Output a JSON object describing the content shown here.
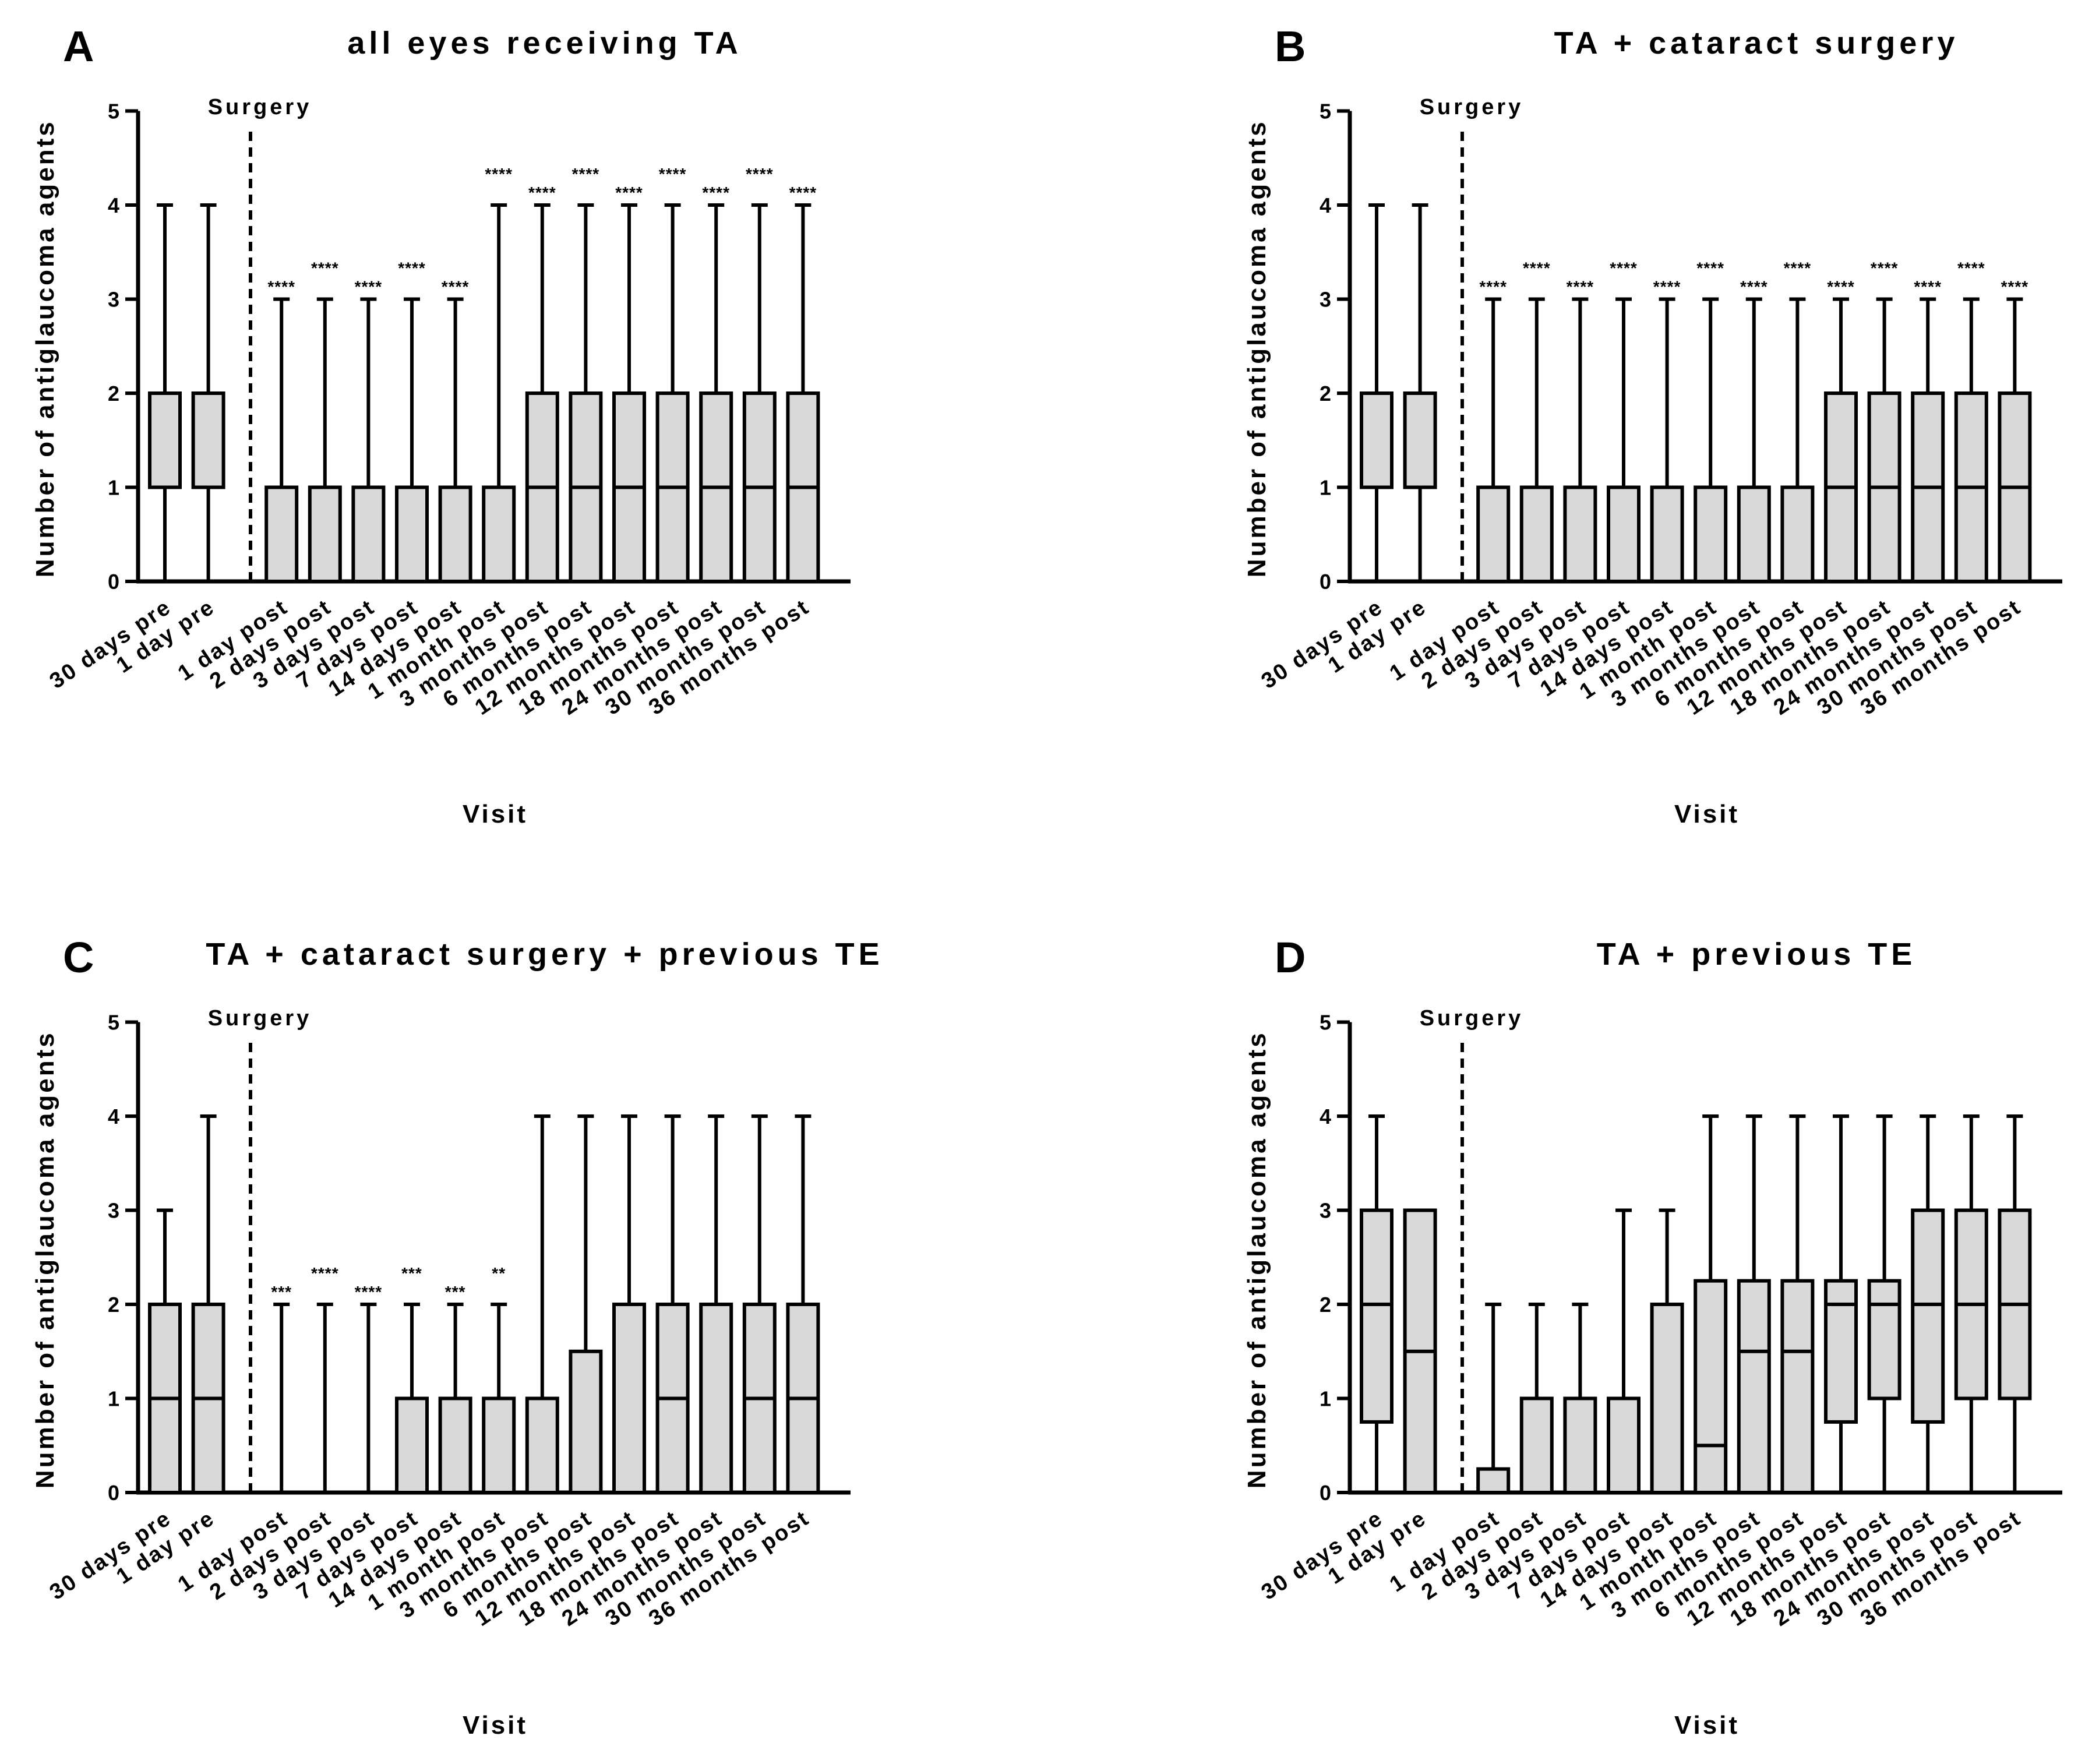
{
  "colors": {
    "box_fill": "#d9d9d9",
    "line": "#000000",
    "background": "#ffffff"
  },
  "chart_data": [
    {
      "type": "box",
      "panel": "A",
      "title": "all eyes receiving TA",
      "xlabel": "Visit",
      "ylabel": "Number of antiglaucoma agents",
      "ylim": [
        0,
        5
      ],
      "yticks": [
        0,
        1,
        2,
        3,
        4,
        5
      ],
      "marker_label": "Surgery",
      "categories": [
        "30 days pre",
        "1 day pre",
        "1 day post",
        "2 days post",
        "3 days post",
        "7 days post",
        "14 days post",
        "1 month post",
        "3 months post",
        "6 months post",
        "12 months post",
        "18 months post",
        "24 months post",
        "30 months post",
        "36 months post"
      ],
      "boxes": [
        {
          "min": 0,
          "q1": 1,
          "median": 1,
          "q3": 2,
          "max": 4,
          "sig": ""
        },
        {
          "min": 0,
          "q1": 1,
          "median": 1,
          "q3": 2,
          "max": 4,
          "sig": ""
        },
        {
          "min": 0,
          "q1": 0,
          "median": 0,
          "q3": 1,
          "max": 3,
          "sig": "****"
        },
        {
          "min": 0,
          "q1": 0,
          "median": 0,
          "q3": 1,
          "max": 3,
          "sig": "****"
        },
        {
          "min": 0,
          "q1": 0,
          "median": 0,
          "q3": 1,
          "max": 3,
          "sig": "****"
        },
        {
          "min": 0,
          "q1": 0,
          "median": 0,
          "q3": 1,
          "max": 3,
          "sig": "****"
        },
        {
          "min": 0,
          "q1": 0,
          "median": 0,
          "q3": 1,
          "max": 3,
          "sig": "****"
        },
        {
          "min": 0,
          "q1": 0,
          "median": 0,
          "q3": 1,
          "max": 4,
          "sig": "****"
        },
        {
          "min": 0,
          "q1": 0,
          "median": 1,
          "q3": 2,
          "max": 4,
          "sig": "****"
        },
        {
          "min": 0,
          "q1": 0,
          "median": 1,
          "q3": 2,
          "max": 4,
          "sig": "****"
        },
        {
          "min": 0,
          "q1": 0,
          "median": 1,
          "q3": 2,
          "max": 4,
          "sig": "****"
        },
        {
          "min": 0,
          "q1": 0,
          "median": 1,
          "q3": 2,
          "max": 4,
          "sig": "****"
        },
        {
          "min": 0,
          "q1": 0,
          "median": 1,
          "q3": 2,
          "max": 4,
          "sig": "****"
        },
        {
          "min": 0,
          "q1": 0,
          "median": 1,
          "q3": 2,
          "max": 4,
          "sig": "****"
        },
        {
          "min": 0,
          "q1": 0,
          "median": 1,
          "q3": 2,
          "max": 4,
          "sig": "****"
        }
      ]
    },
    {
      "type": "box",
      "panel": "B",
      "title": "TA + cataract surgery",
      "xlabel": "Visit",
      "ylabel": "Number of antiglaucoma agents",
      "ylim": [
        0,
        5
      ],
      "yticks": [
        0,
        1,
        2,
        3,
        4,
        5
      ],
      "marker_label": "Surgery",
      "categories": [
        "30 days pre",
        "1 day pre",
        "1 day post",
        "2 days post",
        "3 days post",
        "7 days post",
        "14 days post",
        "1 month post",
        "3 months post",
        "6 months post",
        "12 months post",
        "18 months post",
        "24 months post",
        "30 months post",
        "36 months post"
      ],
      "boxes": [
        {
          "min": 0,
          "q1": 1,
          "median": 1,
          "q3": 2,
          "max": 4,
          "sig": ""
        },
        {
          "min": 0,
          "q1": 1,
          "median": 1,
          "q3": 2,
          "max": 4,
          "sig": ""
        },
        {
          "min": 0,
          "q1": 0,
          "median": 0,
          "q3": 1,
          "max": 3,
          "sig": "****"
        },
        {
          "min": 0,
          "q1": 0,
          "median": 0,
          "q3": 1,
          "max": 3,
          "sig": "****"
        },
        {
          "min": 0,
          "q1": 0,
          "median": 0,
          "q3": 1,
          "max": 3,
          "sig": "****"
        },
        {
          "min": 0,
          "q1": 0,
          "median": 0,
          "q3": 1,
          "max": 3,
          "sig": "****"
        },
        {
          "min": 0,
          "q1": 0,
          "median": 0,
          "q3": 1,
          "max": 3,
          "sig": "****"
        },
        {
          "min": 0,
          "q1": 0,
          "median": 0,
          "q3": 1,
          "max": 3,
          "sig": "****"
        },
        {
          "min": 0,
          "q1": 0,
          "median": 0,
          "q3": 1,
          "max": 3,
          "sig": "****"
        },
        {
          "min": 0,
          "q1": 0,
          "median": 0,
          "q3": 1,
          "max": 3,
          "sig": "****"
        },
        {
          "min": 0,
          "q1": 0,
          "median": 1,
          "q3": 2,
          "max": 3,
          "sig": "****"
        },
        {
          "min": 0,
          "q1": 0,
          "median": 1,
          "q3": 2,
          "max": 3,
          "sig": "****"
        },
        {
          "min": 0,
          "q1": 0,
          "median": 1,
          "q3": 2,
          "max": 3,
          "sig": "****"
        },
        {
          "min": 0,
          "q1": 0,
          "median": 1,
          "q3": 2,
          "max": 3,
          "sig": "****"
        },
        {
          "min": 0,
          "q1": 0,
          "median": 1,
          "q3": 2,
          "max": 3,
          "sig": "****"
        }
      ]
    },
    {
      "type": "box",
      "panel": "C",
      "title": "TA + cataract surgery + previous TE",
      "xlabel": "Visit",
      "ylabel": "Number of antiglaucoma agents",
      "ylim": [
        0,
        5
      ],
      "yticks": [
        0,
        1,
        2,
        3,
        4,
        5
      ],
      "marker_label": "Surgery",
      "categories": [
        "30 days pre",
        "1 day pre",
        "1 day post",
        "2 days post",
        "3 days post",
        "7 days post",
        "14 days post",
        "1 month post",
        "3 months post",
        "6 months post",
        "12 months post",
        "18 months post",
        "24 months post",
        "30 months post",
        "36 months post"
      ],
      "boxes": [
        {
          "min": 0,
          "q1": 0,
          "median": 1,
          "q3": 2,
          "max": 3,
          "sig": ""
        },
        {
          "min": 0,
          "q1": 0,
          "median": 1,
          "q3": 2,
          "max": 4,
          "sig": ""
        },
        {
          "min": 0,
          "q1": 0,
          "median": 0,
          "q3": 0,
          "max": 2,
          "sig": "***"
        },
        {
          "min": 0,
          "q1": 0,
          "median": 0,
          "q3": 0,
          "max": 2,
          "sig": "****"
        },
        {
          "min": 0,
          "q1": 0,
          "median": 0,
          "q3": 0,
          "max": 2,
          "sig": "****"
        },
        {
          "min": 0,
          "q1": 0,
          "median": 0,
          "q3": 1,
          "max": 2,
          "sig": "***"
        },
        {
          "min": 0,
          "q1": 0,
          "median": 0,
          "q3": 1,
          "max": 2,
          "sig": "***"
        },
        {
          "min": 0,
          "q1": 0,
          "median": 0,
          "q3": 1,
          "max": 2,
          "sig": "**"
        },
        {
          "min": 0,
          "q1": 0,
          "median": 0,
          "q3": 1,
          "max": 4,
          "sig": ""
        },
        {
          "min": 0,
          "q1": 0,
          "median": 0,
          "q3": 1.5,
          "max": 4,
          "sig": ""
        },
        {
          "min": 0,
          "q1": 0,
          "median": 0,
          "q3": 2,
          "max": 4,
          "sig": ""
        },
        {
          "min": 0,
          "q1": 0,
          "median": 1,
          "q3": 2,
          "max": 4,
          "sig": ""
        },
        {
          "min": 0,
          "q1": 0,
          "median": 0,
          "q3": 2,
          "max": 4,
          "sig": ""
        },
        {
          "min": 0,
          "q1": 0,
          "median": 1,
          "q3": 2,
          "max": 4,
          "sig": ""
        },
        {
          "min": 0,
          "q1": 0,
          "median": 1,
          "q3": 2,
          "max": 4,
          "sig": ""
        }
      ]
    },
    {
      "type": "box",
      "panel": "D",
      "title": "TA + previous TE",
      "xlabel": "Visit",
      "ylabel": "Number of antiglaucoma agents",
      "ylim": [
        0,
        5
      ],
      "yticks": [
        0,
        1,
        2,
        3,
        4,
        5
      ],
      "marker_label": "Surgery",
      "categories": [
        "30 days pre",
        "1 day pre",
        "1 day post",
        "2 days post",
        "3 days post",
        "7 days post",
        "14 days post",
        "1 month post",
        "3 months post",
        "6 months post",
        "12 months post",
        "18 months post",
        "24 months post",
        "30 months post",
        "36 months post"
      ],
      "boxes": [
        {
          "min": 0,
          "q1": 0.75,
          "median": 2,
          "q3": 3,
          "max": 4,
          "sig": ""
        },
        {
          "min": 0,
          "q1": 0,
          "median": 1.5,
          "q3": 3,
          "max": 3,
          "sig": ""
        },
        {
          "min": 0,
          "q1": 0,
          "median": 0,
          "q3": 0.25,
          "max": 2,
          "sig": ""
        },
        {
          "min": 0,
          "q1": 0,
          "median": 0,
          "q3": 1,
          "max": 2,
          "sig": ""
        },
        {
          "min": 0,
          "q1": 0,
          "median": 0,
          "q3": 1,
          "max": 2,
          "sig": ""
        },
        {
          "min": 0,
          "q1": 0,
          "median": 0,
          "q3": 1,
          "max": 3,
          "sig": ""
        },
        {
          "min": 0,
          "q1": 0,
          "median": 0,
          "q3": 2,
          "max": 3,
          "sig": ""
        },
        {
          "min": 0,
          "q1": 0,
          "median": 0.5,
          "q3": 2.25,
          "max": 4,
          "sig": ""
        },
        {
          "min": 0,
          "q1": 0,
          "median": 1.5,
          "q3": 2.25,
          "max": 4,
          "sig": ""
        },
        {
          "min": 0,
          "q1": 0,
          "median": 1.5,
          "q3": 2.25,
          "max": 4,
          "sig": ""
        },
        {
          "min": 0,
          "q1": 0.75,
          "median": 2,
          "q3": 2.25,
          "max": 4,
          "sig": ""
        },
        {
          "min": 0,
          "q1": 1,
          "median": 2,
          "q3": 2.25,
          "max": 4,
          "sig": ""
        },
        {
          "min": 0,
          "q1": 0.75,
          "median": 2,
          "q3": 3,
          "max": 4,
          "sig": ""
        },
        {
          "min": 0,
          "q1": 1,
          "median": 2,
          "q3": 3,
          "max": 4,
          "sig": ""
        },
        {
          "min": 0,
          "q1": 1,
          "median": 2,
          "q3": 3,
          "max": 4,
          "sig": ""
        }
      ]
    }
  ]
}
